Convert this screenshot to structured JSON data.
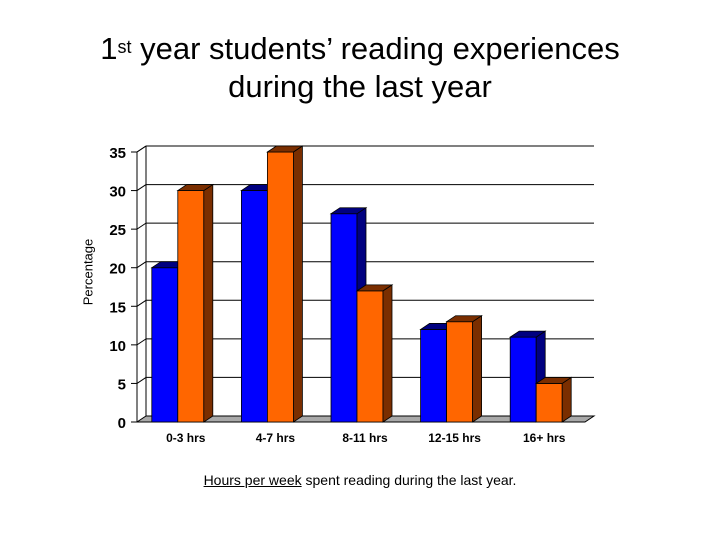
{
  "title": {
    "line1_prefix": "1",
    "line1_super": "st",
    "line1_rest": " year students’ reading experiences",
    "line2": "during the last year"
  },
  "chart_data": {
    "type": "bar",
    "ylabel": "Percentage",
    "categories": [
      "0-3 hrs",
      "4-7 hrs",
      "8-11 hrs",
      "12-15 hrs",
      "16+ hrs"
    ],
    "series": [
      {
        "color": "#0000ff",
        "side_color": "#000080",
        "values": [
          20,
          30,
          27,
          12,
          11
        ]
      },
      {
        "color": "#ff6600",
        "side_color": "#7a2e00",
        "values": [
          30,
          35,
          17,
          13,
          5
        ]
      }
    ],
    "ylim": [
      0,
      35
    ],
    "yticks": [
      0,
      5,
      10,
      15,
      20,
      25,
      30,
      35
    ],
    "grid": true,
    "legend": "none",
    "floor_color": "#a9a9a9"
  },
  "caption": {
    "underlined": "Hours per week",
    "rest": " spent reading during the last year."
  }
}
